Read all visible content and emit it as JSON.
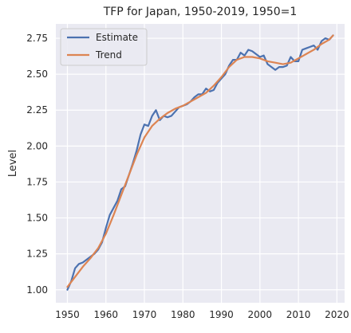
{
  "chart_data": {
    "type": "line",
    "title": "TFP for Japan, 1950-2019, 1950=1",
    "xlabel": "",
    "ylabel": "Level",
    "xlim": [
      1947,
      2022
    ],
    "ylim": [
      0.91,
      2.85
    ],
    "x_ticks": [
      1950,
      1960,
      1970,
      1980,
      1990,
      2000,
      2010,
      2020
    ],
    "x_tick_labels": [
      "1950",
      "1960",
      "1970",
      "1980",
      "1990",
      "2000",
      "2010",
      "2020"
    ],
    "y_ticks": [
      1.0,
      1.25,
      1.5,
      1.75,
      2.0,
      2.25,
      2.5,
      2.75
    ],
    "y_tick_labels": [
      "1.00",
      "1.25",
      "1.50",
      "1.75",
      "2.00",
      "2.25",
      "2.50",
      "2.75"
    ],
    "grid": true,
    "legend_position": "top-left",
    "series": [
      {
        "name": "Estimate",
        "color": "#4c72b0",
        "x": [
          1950,
          1951,
          1952,
          1953,
          1954,
          1955,
          1956,
          1957,
          1958,
          1959,
          1960,
          1961,
          1962,
          1963,
          1964,
          1965,
          1966,
          1967,
          1968,
          1969,
          1970,
          1971,
          1972,
          1973,
          1974,
          1975,
          1976,
          1977,
          1978,
          1979,
          1980,
          1981,
          1982,
          1983,
          1984,
          1985,
          1986,
          1987,
          1988,
          1989,
          1990,
          1991,
          1992,
          1993,
          1994,
          1995,
          1996,
          1997,
          1998,
          1999,
          2000,
          2001,
          2002,
          2003,
          2004,
          2005,
          2006,
          2007,
          2008,
          2009,
          2010,
          2011,
          2012,
          2013,
          2014,
          2015,
          2016,
          2017,
          2018,
          2019
        ],
        "y": [
          1.0,
          1.06,
          1.15,
          1.18,
          1.19,
          1.21,
          1.23,
          1.25,
          1.28,
          1.33,
          1.43,
          1.52,
          1.57,
          1.62,
          1.7,
          1.72,
          1.8,
          1.88,
          1.97,
          2.08,
          2.15,
          2.14,
          2.21,
          2.25,
          2.18,
          2.21,
          2.2,
          2.21,
          2.24,
          2.27,
          2.28,
          2.29,
          2.31,
          2.34,
          2.36,
          2.36,
          2.4,
          2.38,
          2.39,
          2.44,
          2.47,
          2.5,
          2.56,
          2.6,
          2.6,
          2.65,
          2.63,
          2.67,
          2.66,
          2.64,
          2.62,
          2.63,
          2.57,
          2.55,
          2.53,
          2.55,
          2.55,
          2.56,
          2.62,
          2.59,
          2.59,
          2.67,
          2.68,
          2.69,
          2.7,
          2.67,
          2.73,
          2.75,
          2.74,
          2.77
        ]
      },
      {
        "name": "Trend",
        "color": "#dd8452",
        "x": [
          1950,
          1952,
          1954,
          1956,
          1958,
          1960,
          1962,
          1964,
          1966,
          1968,
          1970,
          1972,
          1974,
          1976,
          1978,
          1980,
          1982,
          1984,
          1986,
          1988,
          1990,
          1992,
          1994,
          1996,
          1998,
          2000,
          2002,
          2004,
          2006,
          2008,
          2010,
          2012,
          2014,
          2016,
          2018,
          2019
        ],
        "y": [
          1.02,
          1.09,
          1.16,
          1.22,
          1.29,
          1.39,
          1.52,
          1.66,
          1.8,
          1.94,
          2.06,
          2.14,
          2.19,
          2.23,
          2.26,
          2.28,
          2.31,
          2.34,
          2.37,
          2.42,
          2.48,
          2.55,
          2.6,
          2.62,
          2.62,
          2.61,
          2.59,
          2.58,
          2.57,
          2.58,
          2.61,
          2.64,
          2.67,
          2.71,
          2.74,
          2.77
        ]
      }
    ]
  }
}
